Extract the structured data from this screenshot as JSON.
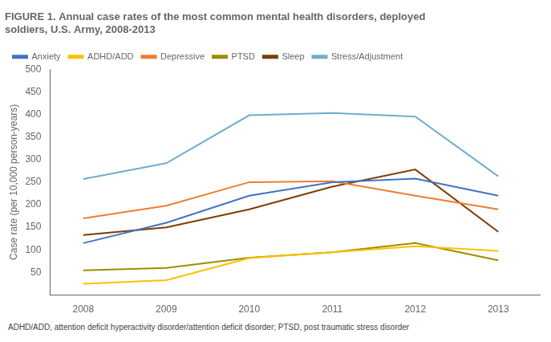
{
  "chart_data": {
    "type": "line",
    "title": [
      "FIGURE 1. Annual case rates of the most common mental health disorders, deployed",
      "soldiers, U.S. Army, 2008-2013"
    ],
    "x": [
      2008,
      2009,
      2010,
      2011,
      2012,
      2013
    ],
    "xlim": [
      2007.6,
      2013.5
    ],
    "xticks": [
      2008,
      2009,
      2010,
      2011,
      2012,
      2013
    ],
    "ylabel": "Case rate (per 10,000 person-years)",
    "ylim": [
      0,
      500
    ],
    "yticks": [
      50,
      100,
      150,
      200,
      250,
      300,
      350,
      400,
      450,
      500
    ],
    "series": [
      {
        "name": "Anxiety",
        "color": "#4472C4",
        "values": [
          115,
          160,
          220,
          250,
          258,
          220
        ]
      },
      {
        "name": "ADHD/ADD",
        "color": "#FFC000",
        "values": [
          25,
          33,
          82,
          95,
          108,
          98
        ]
      },
      {
        "name": "Depressive",
        "color": "#ED7D31",
        "values": [
          170,
          198,
          250,
          252,
          220,
          190
        ]
      },
      {
        "name": "PTSD",
        "color": "#9C8E00",
        "values": [
          55,
          60,
          83,
          95,
          115,
          77
        ]
      },
      {
        "name": "Sleep",
        "color": "#7B3F00",
        "values": [
          133,
          150,
          190,
          240,
          278,
          140
        ]
      },
      {
        "name": "Stress/Adjustment",
        "color": "#70ADCE",
        "values": [
          257,
          292,
          398,
          403,
          395,
          263
        ]
      }
    ],
    "legend": "upper left",
    "grid": false,
    "footnote": "ADHD/ADD, attention deficit hyperactivity disorder/attention deficit disorder; PTSD, post traumatic stress disorder"
  }
}
